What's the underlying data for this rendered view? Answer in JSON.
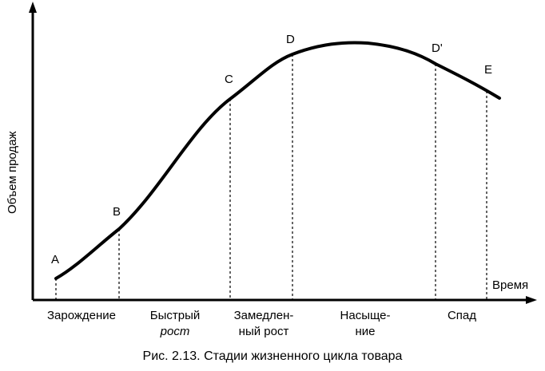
{
  "figure": {
    "y_axis_label": "Объем продаж",
    "x_axis_label": "Время",
    "caption": "Рис. 2.13. Стадии жизненного цикла товара"
  },
  "points": [
    {
      "id": "A",
      "label": "A"
    },
    {
      "id": "B",
      "label": "B"
    },
    {
      "id": "C",
      "label": "C"
    },
    {
      "id": "D",
      "label": "D"
    },
    {
      "id": "D_prime",
      "label": "D'"
    },
    {
      "id": "E",
      "label": "E"
    }
  ],
  "stages": [
    {
      "id": "emergence",
      "lines": [
        "Зарождение"
      ]
    },
    {
      "id": "fast-growth",
      "lines": [
        "Быстрый",
        "рост"
      ]
    },
    {
      "id": "slow-growth",
      "lines": [
        "Замедлен-",
        "ный рост"
      ]
    },
    {
      "id": "saturation",
      "lines": [
        "Насыще-",
        "ние"
      ]
    },
    {
      "id": "decline",
      "lines": [
        "Спад"
      ]
    }
  ]
}
